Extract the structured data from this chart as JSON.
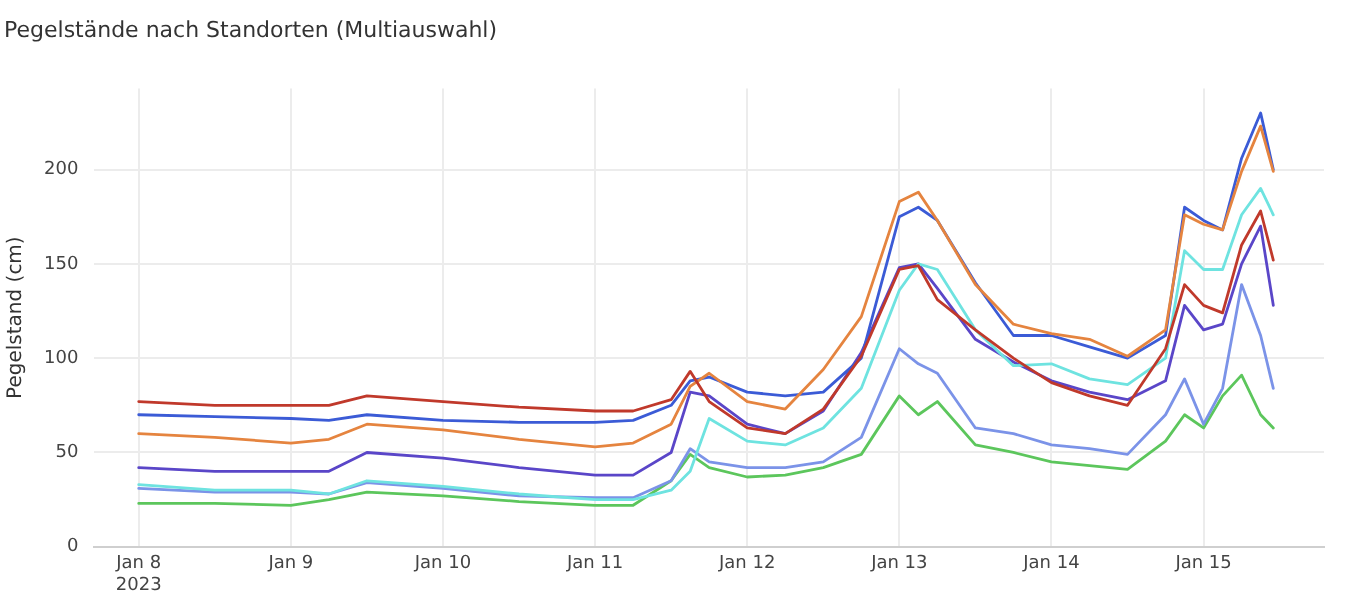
{
  "chart_data": {
    "type": "line",
    "title": "Pegelstände nach Standorten (Multiauswahl)",
    "ylabel": "Pegelstand (cm)",
    "x": [
      "2023-01-08T00:00",
      "2023-01-08T12:00",
      "2023-01-09T00:00",
      "2023-01-09T06:00",
      "2023-01-09T12:00",
      "2023-01-10T00:00",
      "2023-01-10T12:00",
      "2023-01-11T00:00",
      "2023-01-11T06:00",
      "2023-01-11T12:00",
      "2023-01-11T15:00",
      "2023-01-11T18:00",
      "2023-01-12T00:00",
      "2023-01-12T06:00",
      "2023-01-12T12:00",
      "2023-01-12T18:00",
      "2023-01-13T00:00",
      "2023-01-13T03:00",
      "2023-01-13T06:00",
      "2023-01-13T12:00",
      "2023-01-13T18:00",
      "2023-01-14T00:00",
      "2023-01-14T06:00",
      "2023-01-14T12:00",
      "2023-01-14T18:00",
      "2023-01-14T21:00",
      "2023-01-15T00:00",
      "2023-01-15T03:00",
      "2023-01-15T06:00",
      "2023-01-15T09:00",
      "2023-01-15T11:00"
    ],
    "series": [
      {
        "color": "#c0392b",
        "values": [
          77,
          75,
          75,
          75,
          80,
          77,
          74,
          72,
          72,
          78,
          93,
          77,
          63,
          60,
          73,
          101,
          147,
          149,
          131,
          115,
          100,
          87,
          80,
          75,
          105,
          139,
          128,
          124,
          160,
          178,
          152
        ]
      },
      {
        "color": "#e5843f",
        "values": [
          60,
          58,
          55,
          57,
          65,
          62,
          57,
          53,
          55,
          65,
          85,
          92,
          77,
          73,
          94,
          122,
          183,
          188,
          173,
          139,
          118,
          113,
          110,
          101,
          115,
          176,
          171,
          168,
          199,
          223,
          199
        ]
      },
      {
        "color": "#3b5bd6",
        "values": [
          70,
          69,
          68,
          67,
          70,
          67,
          66,
          66,
          67,
          75,
          88,
          90,
          82,
          80,
          82,
          100,
          175,
          180,
          173,
          140,
          112,
          112,
          106,
          100,
          112,
          180,
          173,
          168,
          206,
          230,
          200
        ]
      },
      {
        "color": "#6ee3e0",
        "values": [
          33,
          30,
          30,
          28,
          35,
          32,
          28,
          25,
          25,
          30,
          40,
          68,
          56,
          54,
          63,
          84,
          136,
          150,
          147,
          115,
          96,
          97,
          89,
          86,
          100,
          157,
          147,
          147,
          176,
          190,
          176
        ]
      },
      {
        "color": "#5a46c8",
        "values": [
          42,
          40,
          40,
          40,
          50,
          47,
          42,
          38,
          38,
          50,
          82,
          80,
          65,
          60,
          72,
          103,
          148,
          150,
          137,
          110,
          98,
          88,
          82,
          78,
          88,
          128,
          115,
          118,
          150,
          170,
          128
        ]
      },
      {
        "color": "#7b93e8",
        "values": [
          31,
          29,
          29,
          28,
          34,
          31,
          27,
          26,
          26,
          35,
          52,
          45,
          42,
          42,
          45,
          58,
          105,
          97,
          92,
          63,
          60,
          54,
          52,
          49,
          70,
          89,
          65,
          84,
          139,
          112,
          84
        ]
      },
      {
        "color": "#5cc65c",
        "values": [
          23,
          23,
          22,
          25,
          29,
          27,
          24,
          22,
          22,
          35,
          49,
          42,
          37,
          38,
          42,
          49,
          80,
          70,
          77,
          54,
          50,
          45,
          43,
          41,
          56,
          70,
          63,
          80,
          91,
          70,
          63
        ]
      }
    ],
    "xlim": [
      "2023-01-07T17:00",
      "2023-01-15T19:00"
    ],
    "xticks": [
      {
        "value": "2023-01-08",
        "label": "Jan 8\n2023"
      },
      {
        "value": "2023-01-09",
        "label": "Jan 9"
      },
      {
        "value": "2023-01-10",
        "label": "Jan 10"
      },
      {
        "value": "2023-01-11",
        "label": "Jan 11"
      },
      {
        "value": "2023-01-12",
        "label": "Jan 12"
      },
      {
        "value": "2023-01-13",
        "label": "Jan 13"
      },
      {
        "value": "2023-01-14",
        "label": "Jan 14"
      },
      {
        "value": "2023-01-15",
        "label": "Jan 15"
      }
    ],
    "ylim": [
      0,
      243
    ],
    "yticks": [
      0,
      50,
      100,
      150,
      200
    ],
    "grid": true,
    "legend": false,
    "marker": "none",
    "line_style": "solid"
  }
}
